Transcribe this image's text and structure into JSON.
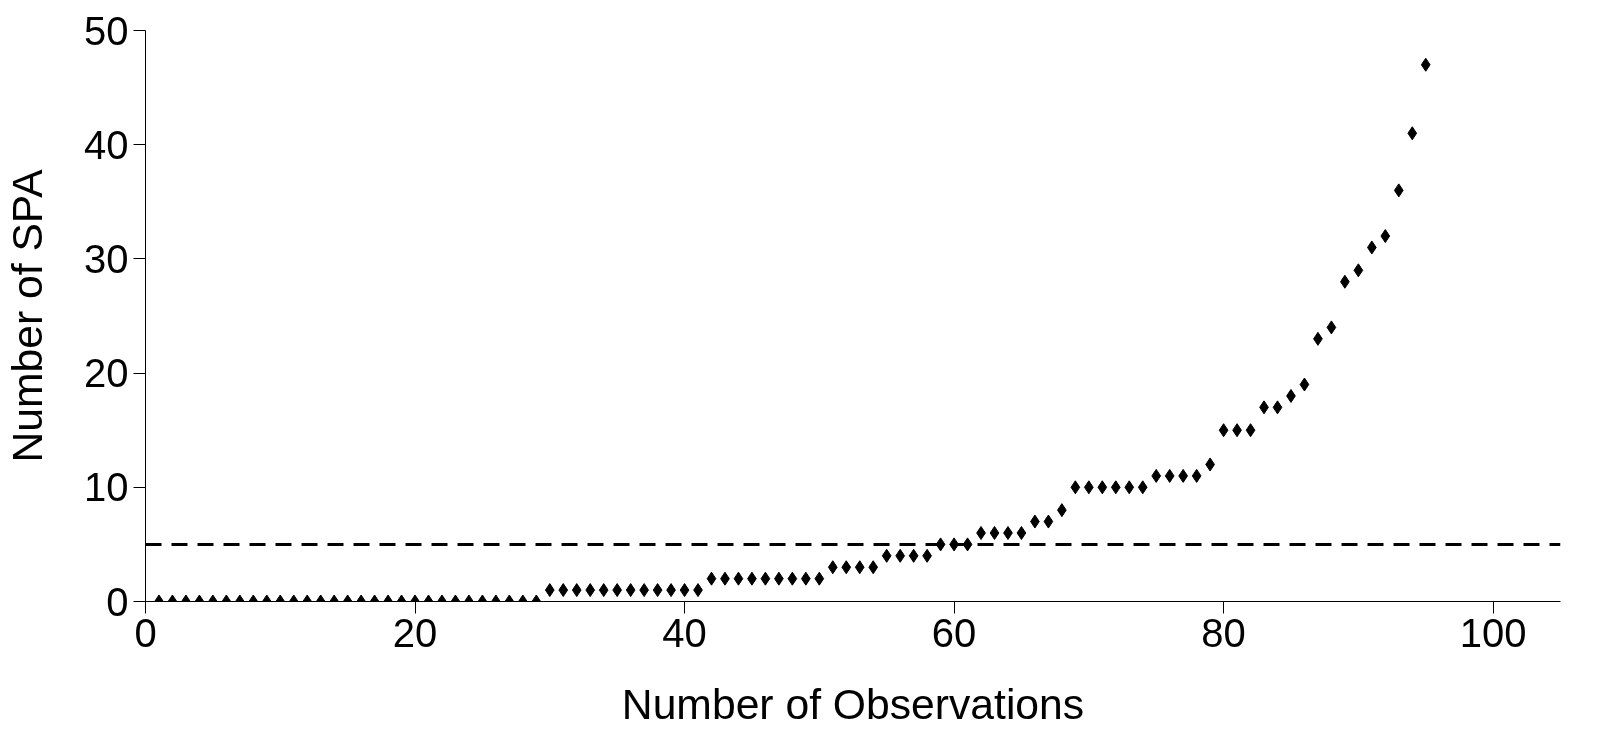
{
  "chart_data": {
    "type": "scatter",
    "xlabel": "Number of Observations",
    "ylabel": "Number of SPA",
    "x": [
      1,
      2,
      3,
      4,
      5,
      6,
      7,
      8,
      9,
      10,
      11,
      12,
      13,
      14,
      15,
      16,
      17,
      18,
      19,
      20,
      21,
      22,
      23,
      24,
      25,
      26,
      27,
      28,
      29,
      30,
      31,
      32,
      33,
      34,
      35,
      36,
      37,
      38,
      39,
      40,
      41,
      42,
      43,
      44,
      45,
      46,
      47,
      48,
      49,
      50,
      51,
      52,
      53,
      54,
      55,
      56,
      57,
      58,
      59,
      60,
      61,
      62,
      63,
      64,
      65,
      66,
      67,
      68,
      69,
      70,
      71,
      72,
      73,
      74,
      75,
      76,
      77,
      78,
      79,
      80,
      81,
      82,
      83,
      84,
      85,
      86,
      87,
      88,
      89,
      90,
      91,
      92,
      93,
      94,
      95
    ],
    "series": [
      {
        "color": "#000000",
        "values": [
          0,
          0,
          0,
          0,
          0,
          0,
          0,
          0,
          0,
          0,
          0,
          0,
          0,
          0,
          0,
          0,
          0,
          0,
          0,
          0,
          0,
          0,
          0,
          0,
          0,
          0,
          0,
          0,
          0,
          1,
          1,
          1,
          1,
          1,
          1,
          1,
          1,
          1,
          1,
          1,
          1,
          2,
          2,
          2,
          2,
          2,
          2,
          2,
          2,
          2,
          3,
          3,
          3,
          3,
          4,
          4,
          4,
          4,
          5,
          5,
          5,
          6,
          6,
          6,
          6,
          7,
          7,
          8,
          10,
          10,
          10,
          10,
          10,
          10,
          11,
          11,
          11,
          11,
          12,
          15,
          15,
          15,
          17,
          17,
          18,
          19,
          23,
          24,
          28,
          29,
          31,
          32,
          36,
          41,
          47
        ]
      }
    ],
    "marker": "diamond",
    "xlim": [
      0,
      105
    ],
    "ylim": [
      0,
      50
    ],
    "xticks": [
      0,
      20,
      40,
      60,
      80,
      100
    ],
    "yticks": [
      0,
      10,
      20,
      30,
      40,
      50
    ],
    "grid": false,
    "ref_lines": [
      {
        "axis": "y",
        "value": 5,
        "color": "#000000",
        "line_style": "dashed"
      }
    ]
  }
}
